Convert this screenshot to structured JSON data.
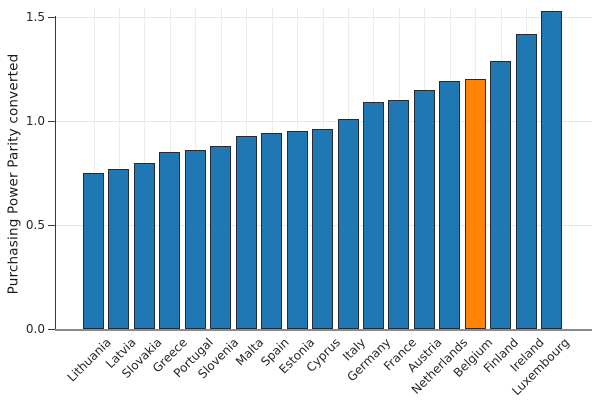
{
  "chart_data": {
    "type": "bar",
    "title": "",
    "xlabel": "",
    "ylabel": "Purchasing Power Parity converted",
    "categories": [
      "Lithuania",
      "Latvia",
      "Slovakia",
      "Greece",
      "Portugal",
      "Slovenia",
      "Malta",
      "Spain",
      "Estonia",
      "Cyprus",
      "Italy",
      "Germany",
      "France",
      "Austria",
      "Netherlands",
      "Belgium",
      "Finland",
      "Ireland",
      "Luxembourg"
    ],
    "values": [
      0.75,
      0.77,
      0.8,
      0.85,
      0.86,
      0.88,
      0.93,
      0.94,
      0.95,
      0.96,
      1.01,
      1.09,
      1.1,
      1.15,
      1.19,
      1.2,
      1.29,
      1.42,
      1.53
    ],
    "highlighted_category": "Belgium",
    "ytick_labels": [
      "0.0",
      "0.5",
      "1.0",
      "1.5"
    ],
    "ylim": [
      0.0,
      1.55
    ],
    "grid": true,
    "legend_position": "none",
    "colors": {
      "bar": "#1f77b4",
      "highlight": "#ff8408",
      "bar_edge": "#262a33",
      "grid": "#e7e7e7",
      "left_axis": "#3a3a3a",
      "bottom_axis": "#8a8a8a",
      "tick_label": "#262626"
    }
  }
}
